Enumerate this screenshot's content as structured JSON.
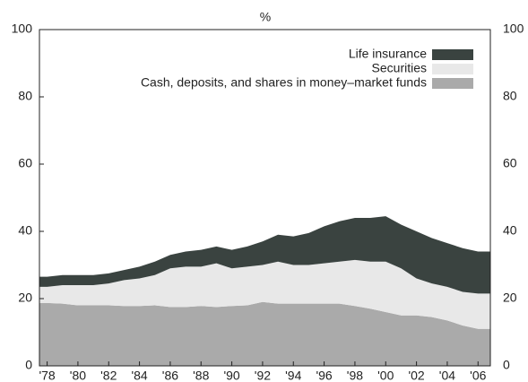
{
  "chart_data": {
    "type": "stacked-area",
    "title": "%",
    "x": [
      1978,
      1979,
      1980,
      1981,
      1982,
      1983,
      1984,
      1985,
      1986,
      1987,
      1988,
      1989,
      1990,
      1991,
      1992,
      1993,
      1994,
      1995,
      1996,
      1997,
      1998,
      1999,
      2000,
      2001,
      2002,
      2003,
      2004,
      2005,
      2006
    ],
    "series": [
      {
        "name": "Cash, deposits, and shares in money–market funds",
        "color": "#aaaaaa",
        "values": [
          18.7,
          18.5,
          18,
          18,
          18,
          17.8,
          17.8,
          18,
          17.5,
          17.5,
          17.8,
          17.5,
          17.8,
          18,
          19,
          18.5,
          18.5,
          18.5,
          18.5,
          18.5,
          17.8,
          17,
          16,
          15,
          15,
          14.5,
          13.5,
          12,
          11
        ]
      },
      {
        "name": "Securities",
        "color": "#e8e8e8",
        "values": [
          4.8,
          5.5,
          6,
          6,
          6.5,
          7.7,
          8.2,
          9,
          11.5,
          12,
          11.7,
          13,
          11.2,
          11.5,
          11,
          12.5,
          11.5,
          11.5,
          12,
          12.5,
          13.7,
          14,
          15,
          14,
          11,
          10,
          10,
          10,
          10.5
        ]
      },
      {
        "name": "Life insurance",
        "color": "#3a4340",
        "values": [
          3,
          3,
          3,
          3,
          3,
          3,
          3.5,
          4,
          4,
          4.5,
          5,
          5,
          5.5,
          6,
          7,
          8,
          8.5,
          9.5,
          11,
          12,
          12.5,
          13,
          13.5,
          13,
          14,
          13.5,
          13,
          13,
          12.5
        ]
      }
    ],
    "xlim": [
      1977.5,
      2006.8
    ],
    "xticks": [
      {
        "value": 1978,
        "label": "'78"
      },
      {
        "value": 1980,
        "label": "'80"
      },
      {
        "value": 1982,
        "label": "'82"
      },
      {
        "value": 1984,
        "label": "'84"
      },
      {
        "value": 1986,
        "label": "'86"
      },
      {
        "value": 1988,
        "label": "'88"
      },
      {
        "value": 1990,
        "label": "'90"
      },
      {
        "value": 1992,
        "label": "'92"
      },
      {
        "value": 1994,
        "label": "'94"
      },
      {
        "value": 1996,
        "label": "'96"
      },
      {
        "value": 1998,
        "label": "'98"
      },
      {
        "value": 2000,
        "label": "'00"
      },
      {
        "value": 2002,
        "label": "'02"
      },
      {
        "value": 2004,
        "label": "'04"
      },
      {
        "value": 2006,
        "label": "'06"
      }
    ],
    "ylim": [
      0,
      100
    ],
    "yticks": [
      0,
      20,
      40,
      60,
      80,
      100
    ],
    "legend": "top-right"
  }
}
